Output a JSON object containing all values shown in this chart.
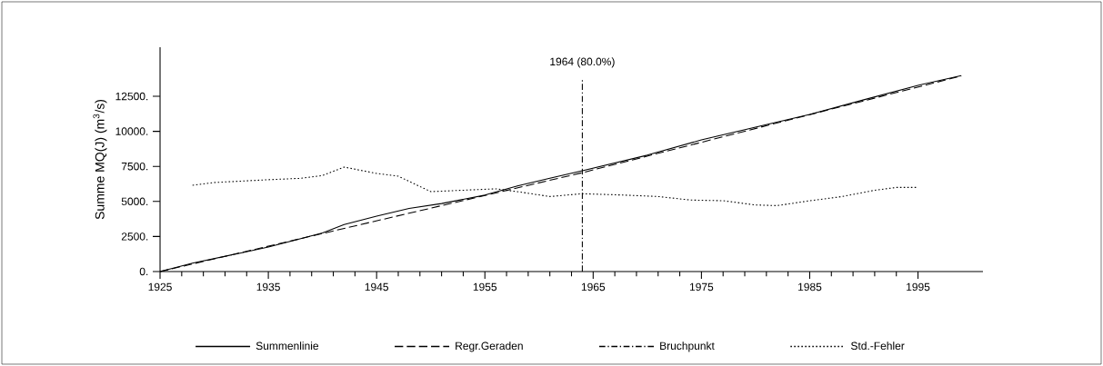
{
  "chart_data": {
    "type": "line",
    "ylabel": "Summe MQ(J) (m$^{3}$/s)",
    "xlim": [
      1925,
      2001
    ],
    "ylim": [
      0,
      16000
    ],
    "xticks": [
      1925,
      1935,
      1945,
      1955,
      1965,
      1975,
      1985,
      1995
    ],
    "yticks": [
      {
        "value": 0,
        "label": "0."
      },
      {
        "value": 2500,
        "label": "2500."
      },
      {
        "value": 5000,
        "label": "5000."
      },
      {
        "value": 7500,
        "label": "7500."
      },
      {
        "value": 10000,
        "label": "10000."
      },
      {
        "value": 12500,
        "label": "12500."
      }
    ],
    "series": [
      {
        "name": "Summenlinie",
        "color": "#000000",
        "line_style": "solid",
        "x": [
          1925,
          1928,
          1932,
          1935,
          1938,
          1940,
          1942,
          1945,
          1948,
          1951,
          1955,
          1958,
          1961,
          1964,
          1970,
          1975,
          1980,
          1985,
          1990,
          1995,
          1999
        ],
        "values": [
          0,
          600,
          1250,
          1750,
          2350,
          2750,
          3350,
          3950,
          4500,
          4850,
          5450,
          6100,
          6650,
          7190,
          8300,
          9390,
          10300,
          11200,
          12250,
          13280,
          13980
        ]
      },
      {
        "name": "Regr.Geraden",
        "color": "#000000",
        "line_style": "dashed",
        "x": [
          1925,
          1964,
          1999
        ],
        "values": [
          0,
          7050,
          13950
        ]
      },
      {
        "name": "Std.-Fehler",
        "color": "#000000",
        "line_style": "dotted",
        "x": [
          1928,
          1930,
          1935,
          1938,
          1940,
          1942,
          1945,
          1947,
          1950,
          1953,
          1956,
          1958,
          1961,
          1964,
          1968,
          1971,
          1974,
          1977,
          1980,
          1982,
          1985,
          1988,
          1991,
          1993,
          1995
        ],
        "values": [
          6150,
          6350,
          6550,
          6650,
          6850,
          7450,
          7000,
          6800,
          5700,
          5800,
          5900,
          5700,
          5350,
          5550,
          5450,
          5350,
          5100,
          5050,
          4750,
          4700,
          5050,
          5350,
          5800,
          6000,
          6000
        ]
      }
    ],
    "ref_lines": [
      {
        "axis": "x",
        "value": 1964,
        "label": "1964 (80.0%)",
        "color": "#000000",
        "line_style": "dashdot"
      }
    ],
    "annotations": [
      "Bruchpunkt"
    ],
    "legend": "bottom"
  }
}
